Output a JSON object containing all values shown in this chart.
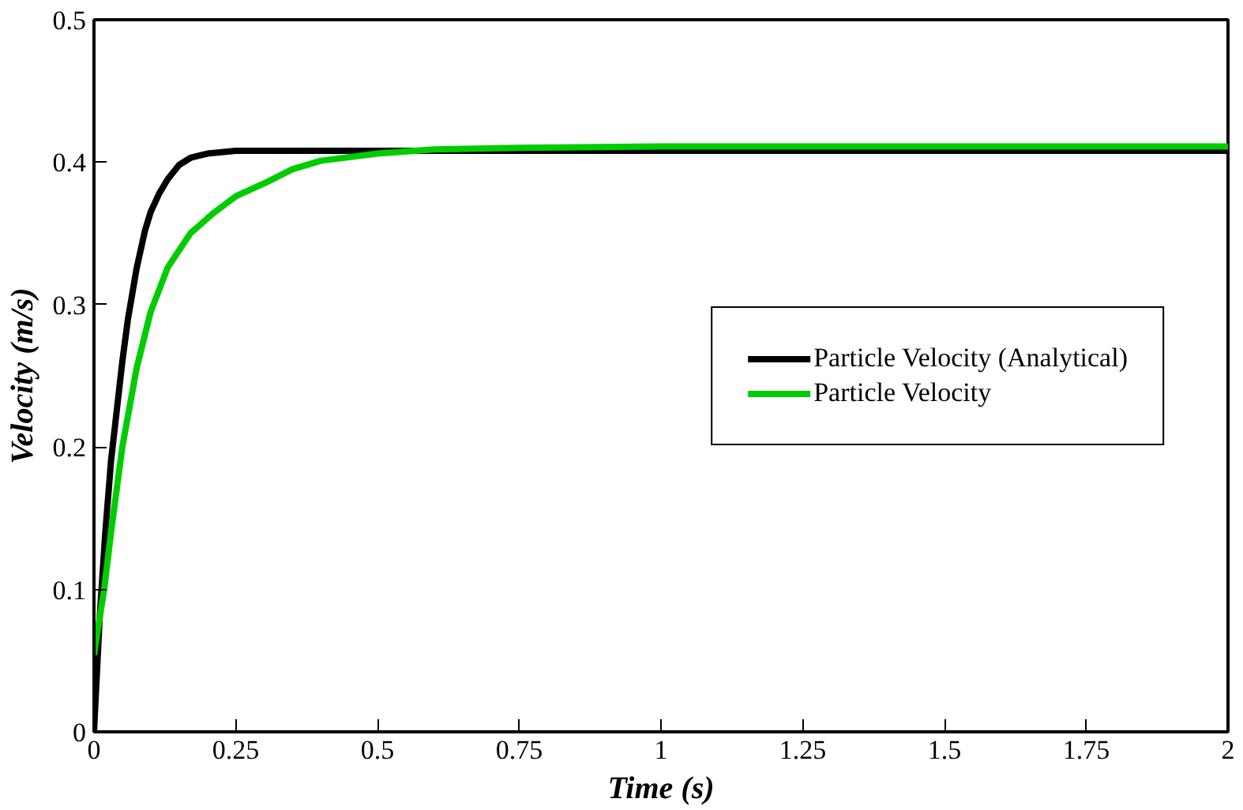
{
  "chart_data": {
    "type": "line",
    "xlabel": "Time (s)",
    "ylabel": "Velocity (m/s)",
    "xlim": [
      0,
      2
    ],
    "ylim": [
      0,
      0.5
    ],
    "xticks": [
      0,
      0.25,
      0.5,
      0.75,
      1,
      1.25,
      1.5,
      1.75,
      2
    ],
    "yticks": [
      0,
      0.1,
      0.2,
      0.3,
      0.4,
      0.5
    ],
    "grid": false,
    "legend": "right",
    "line_style": "solid",
    "marker": "none",
    "series": [
      {
        "name": "Particle Velocity (Analytical)",
        "color": "#000000",
        "x": [
          0,
          0.01,
          0.02,
          0.03,
          0.04,
          0.05,
          0.06,
          0.075,
          0.09,
          0.1,
          0.115,
          0.13,
          0.15,
          0.17,
          0.2,
          0.25,
          0.3,
          0.5,
          1,
          1.5,
          2
        ],
        "values": [
          0,
          0.08,
          0.14,
          0.19,
          0.225,
          0.26,
          0.29,
          0.325,
          0.352,
          0.365,
          0.378,
          0.388,
          0.398,
          0.403,
          0.406,
          0.408,
          0.408,
          0.408,
          0.408,
          0.408,
          0.408
        ]
      },
      {
        "name": "Particle Velocity",
        "color": "#00cc00",
        "x": [
          0,
          0.01,
          0.018,
          0.03,
          0.05,
          0.075,
          0.1,
          0.13,
          0.17,
          0.21,
          0.25,
          0.305,
          0.35,
          0.4,
          0.5,
          0.6,
          0.75,
          1,
          1.5,
          2
        ],
        "values": [
          0.054,
          0.08,
          0.1,
          0.14,
          0.2,
          0.255,
          0.295,
          0.326,
          0.35,
          0.364,
          0.376,
          0.386,
          0.395,
          0.401,
          0.406,
          0.409,
          0.41,
          0.411,
          0.411,
          0.411
        ]
      }
    ]
  }
}
